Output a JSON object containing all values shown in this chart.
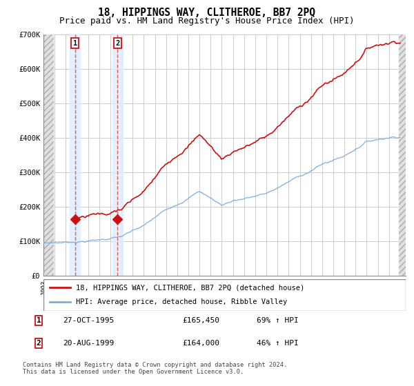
{
  "title": "18, HIPPINGS WAY, CLITHEROE, BB7 2PQ",
  "subtitle": "Price paid vs. HM Land Registry's House Price Index (HPI)",
  "ylim": [
    0,
    700000
  ],
  "yticks": [
    0,
    100000,
    200000,
    300000,
    400000,
    500000,
    600000,
    700000
  ],
  "ytick_labels": [
    "£0",
    "£100K",
    "£200K",
    "£300K",
    "£400K",
    "£500K",
    "£600K",
    "£700K"
  ],
  "xmin": 1993,
  "xmax": 2025.5,
  "sale1_date": 1995.83,
  "sale1_price": 165450,
  "sale2_date": 1999.64,
  "sale2_price": 164000,
  "hpi_line_color": "#7aade0",
  "price_line_color": "#cc1111",
  "dashed_line_color": "#ee5555",
  "shade_color": "#ddeeff",
  "hatch_color": "#cccccc",
  "legend_line1": "18, HIPPINGS WAY, CLITHEROE, BB7 2PQ (detached house)",
  "legend_line2": "HPI: Average price, detached house, Ribble Valley",
  "table_row1": [
    "1",
    "27-OCT-1995",
    "£165,450",
    "69% ↑ HPI"
  ],
  "table_row2": [
    "2",
    "20-AUG-1999",
    "£164,000",
    "46% ↑ HPI"
  ],
  "footnote": "Contains HM Land Registry data © Crown copyright and database right 2024.\nThis data is licensed under the Open Government Licence v3.0.",
  "title_fontsize": 10.5,
  "subtitle_fontsize": 9
}
